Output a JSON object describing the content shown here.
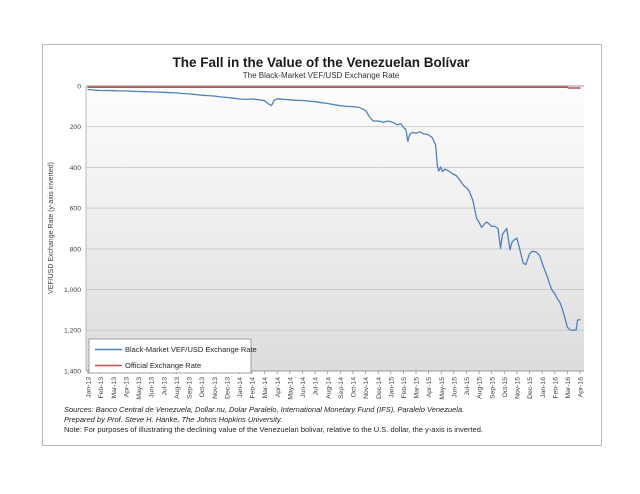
{
  "chart_data": {
    "type": "line",
    "title": "The Fall in the Value of the Venezuelan Bolívar",
    "subtitle": "The Black-Market VEF/USD Exchange Rate",
    "ylabel": "VEF/USD Exchange Rate (y-axis inverted)",
    "xlabel": "",
    "ylim": [
      0,
      1400
    ],
    "y_axis_inverted": true,
    "grid": true,
    "legend_position": "bottom-left-inside",
    "y_ticks": [
      0,
      200,
      400,
      600,
      800,
      1000,
      1200,
      1400
    ],
    "y_tick_labels": [
      "0",
      "200",
      "400",
      "600",
      "800",
      "1,000",
      "1,200",
      "1,400"
    ],
    "categories": [
      "Jan-13",
      "Feb-13",
      "Mar-13",
      "Apr-13",
      "May-13",
      "Jun-13",
      "Jul-13",
      "Aug-13",
      "Sep-13",
      "Oct-13",
      "Nov-13",
      "Dec-13",
      "Jan-14",
      "Feb-14",
      "Mar-14",
      "Apr-14",
      "May-14",
      "Jun-14",
      "Jul-14",
      "Aug-14",
      "Sep-14",
      "Oct-14",
      "Nov-14",
      "Dec-14",
      "Jan-15",
      "Feb-15",
      "Mar-15",
      "Apr-15",
      "May-15",
      "Jun-15",
      "Jul-15",
      "Aug-15",
      "Sep-15",
      "Oct-15",
      "Nov-15",
      "Dec-15",
      "Jan-16",
      "Feb-16",
      "Mar-16",
      "Apr-16"
    ],
    "series": [
      {
        "name": "Black-Market VEF/USD Exchange Rate",
        "color": "#4f81bd",
        "width": 1.3,
        "data": [
          [
            0,
            17
          ],
          [
            0.5,
            20
          ],
          [
            1,
            22
          ],
          [
            1.5,
            22
          ],
          [
            2,
            23
          ],
          [
            2.5,
            24
          ],
          [
            3,
            24
          ],
          [
            3.5,
            26
          ],
          [
            4,
            27
          ],
          [
            4.5,
            28
          ],
          [
            5,
            29
          ],
          [
            5.5,
            30
          ],
          [
            6,
            31
          ],
          [
            6.5,
            33
          ],
          [
            7,
            34
          ],
          [
            7.5,
            37
          ],
          [
            8,
            39
          ],
          [
            8.5,
            42
          ],
          [
            9,
            45
          ],
          [
            9.5,
            47
          ],
          [
            10,
            49
          ],
          [
            10.3,
            52
          ],
          [
            10.6,
            54
          ],
          [
            11,
            56
          ],
          [
            11.5,
            60
          ],
          [
            12,
            64
          ],
          [
            12.5,
            66
          ],
          [
            13,
            64
          ],
          [
            13.5,
            67
          ],
          [
            14,
            72
          ],
          [
            14.3,
            88
          ],
          [
            14.55,
            96
          ],
          [
            14.75,
            70
          ],
          [
            15,
            63
          ],
          [
            15.3,
            65
          ],
          [
            15.6,
            66
          ],
          [
            16,
            68
          ],
          [
            16.5,
            70
          ],
          [
            17,
            71
          ],
          [
            17.5,
            74
          ],
          [
            18,
            77
          ],
          [
            18.5,
            82
          ],
          [
            19,
            86
          ],
          [
            19.5,
            92
          ],
          [
            20,
            97
          ],
          [
            20.5,
            100
          ],
          [
            21,
            101
          ],
          [
            21.5,
            105
          ],
          [
            22,
            120
          ],
          [
            22.3,
            150
          ],
          [
            22.6,
            172
          ],
          [
            23,
            172
          ],
          [
            23.4,
            178
          ],
          [
            23.8,
            172
          ],
          [
            24.2,
            180
          ],
          [
            24.5,
            190
          ],
          [
            24.8,
            185
          ],
          [
            25.05,
            207
          ],
          [
            25.2,
            212
          ],
          [
            25.35,
            272
          ],
          [
            25.5,
            238
          ],
          [
            25.7,
            228
          ],
          [
            26,
            232
          ],
          [
            26.3,
            225
          ],
          [
            26.6,
            235
          ],
          [
            27,
            240
          ],
          [
            27.3,
            255
          ],
          [
            27.55,
            290
          ],
          [
            27.7,
            395
          ],
          [
            27.8,
            418
          ],
          [
            27.95,
            398
          ],
          [
            28.1,
            420
          ],
          [
            28.3,
            408
          ],
          [
            28.6,
            418
          ],
          [
            28.9,
            432
          ],
          [
            29.2,
            440
          ],
          [
            29.5,
            465
          ],
          [
            29.8,
            490
          ],
          [
            30,
            500
          ],
          [
            30.2,
            515
          ],
          [
            30.5,
            560
          ],
          [
            30.8,
            650
          ],
          [
            31,
            670
          ],
          [
            31.2,
            695
          ],
          [
            31.4,
            680
          ],
          [
            31.6,
            668
          ],
          [
            31.8,
            678
          ],
          [
            32,
            690
          ],
          [
            32.2,
            688
          ],
          [
            32.5,
            700
          ],
          [
            32.7,
            798
          ],
          [
            32.85,
            730
          ],
          [
            33,
            715
          ],
          [
            33.2,
            700
          ],
          [
            33.45,
            805
          ],
          [
            33.6,
            768
          ],
          [
            33.8,
            755
          ],
          [
            34,
            747
          ],
          [
            34.2,
            795
          ],
          [
            34.5,
            870
          ],
          [
            34.7,
            878
          ],
          [
            35,
            825
          ],
          [
            35.2,
            812
          ],
          [
            35.5,
            815
          ],
          [
            35.8,
            832
          ],
          [
            36,
            870
          ],
          [
            36.2,
            905
          ],
          [
            36.4,
            935
          ],
          [
            36.6,
            973
          ],
          [
            36.8,
            1005
          ],
          [
            37,
            1020
          ],
          [
            37.2,
            1045
          ],
          [
            37.4,
            1062
          ],
          [
            37.6,
            1095
          ],
          [
            37.8,
            1140
          ],
          [
            38,
            1185
          ],
          [
            38.2,
            1198
          ],
          [
            38.5,
            1200
          ],
          [
            38.7,
            1198
          ],
          [
            38.8,
            1150
          ],
          [
            39,
            1148
          ]
        ]
      },
      {
        "name": "Official Exchange Rate",
        "color": "#c0504d",
        "width": 1.5,
        "data": [
          [
            0,
            6
          ],
          [
            10,
            6
          ],
          [
            20,
            6
          ],
          [
            30,
            6
          ],
          [
            38,
            6
          ],
          [
            38.1,
            10
          ],
          [
            39,
            10
          ]
        ]
      }
    ]
  },
  "footer": {
    "sources": "Sources: Banco Central de Venezuela, Dollar.nu, Dolar Paralelo, International Monetary Fund (IFS), Paralelo Venezuela.",
    "prepared": "Prepared by Prof. Steve H. Hanke, The Johns Hopkins University.",
    "note": "Note: For purposes of illustrating the declining value of the Venezuelan bolivar, relative to the U.S. dollar, the y-axis is inverted."
  }
}
